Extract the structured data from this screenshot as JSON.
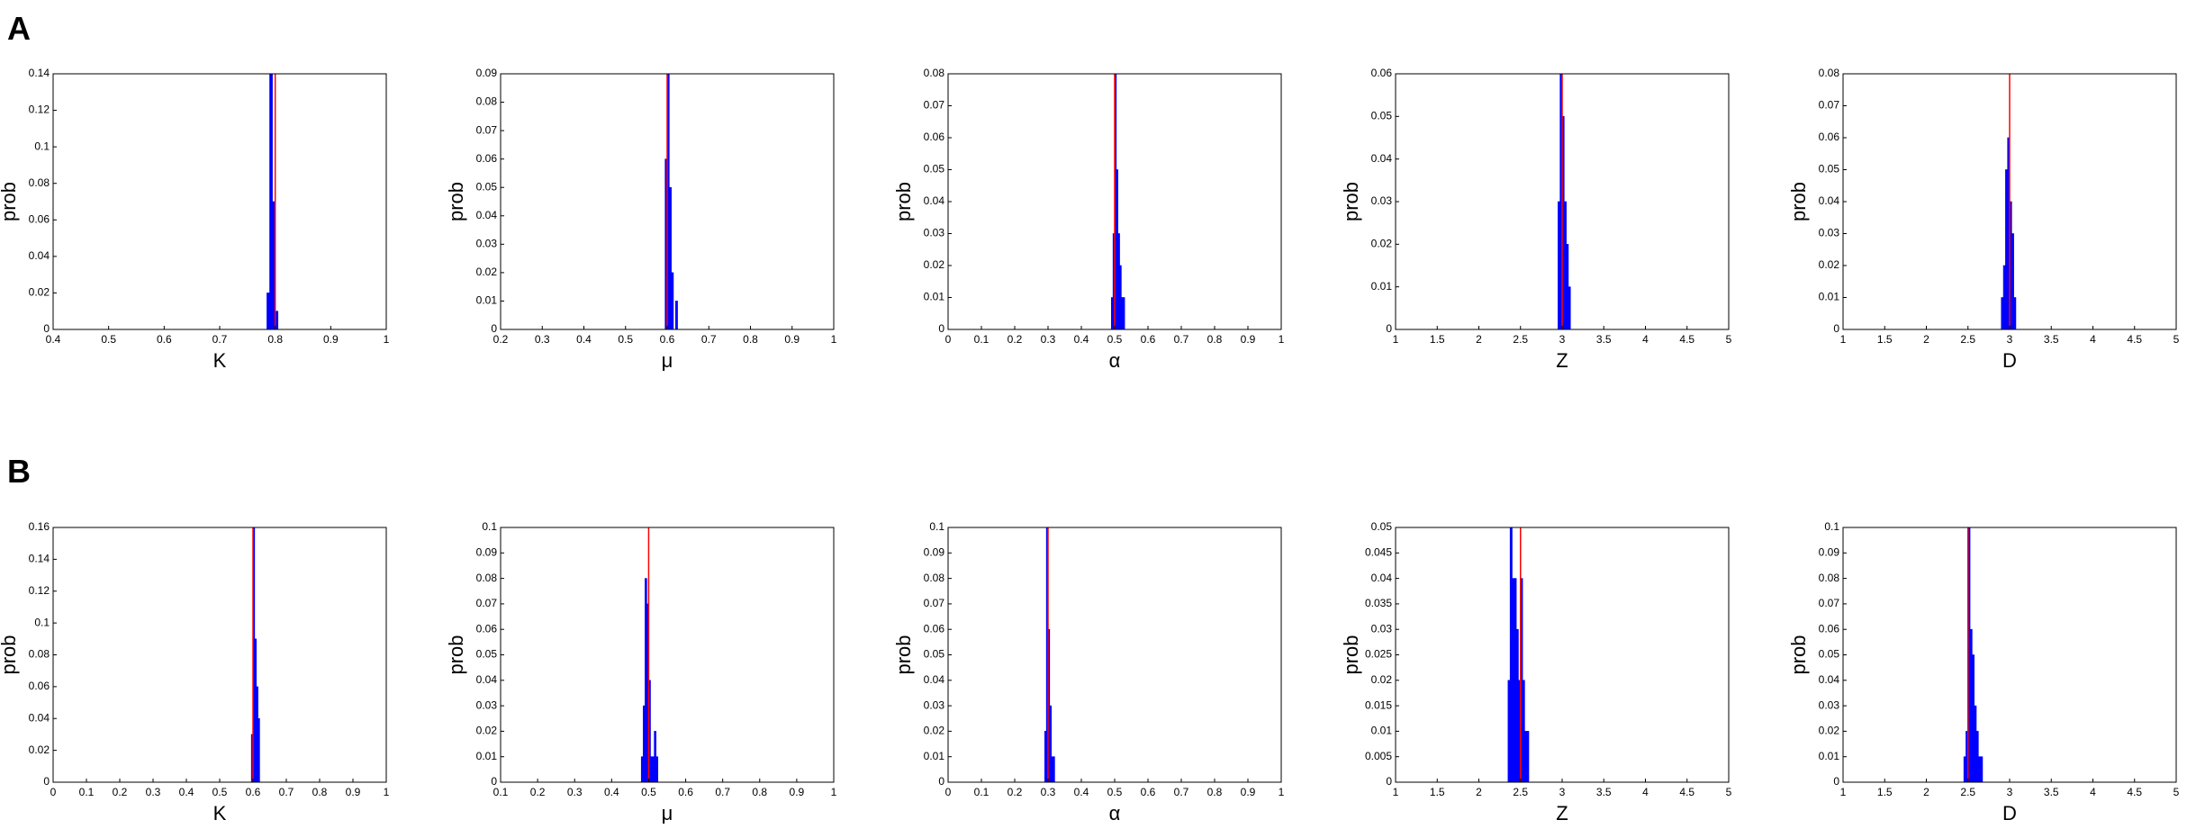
{
  "panel_labels": [
    "A",
    "B"
  ],
  "chart_data": [
    {
      "type": "histogram",
      "xlabel": "K",
      "ylabel": "prob",
      "color": "#0000ff",
      "reference_value": 0.8,
      "reference_color": "#ff0000",
      "bins": [
        0.785,
        0.79,
        0.795,
        0.8,
        0.805,
        0.81
      ],
      "values": [
        0.02,
        0.14,
        0.07,
        0.01,
        0
      ],
      "xlim": [
        0.4,
        1
      ],
      "xticks": [
        0.4,
        0.5,
        0.6,
        0.7,
        0.8,
        0.9,
        1
      ],
      "ylim": [
        0,
        0.14
      ],
      "yticks": [
        0,
        0.02,
        0.04,
        0.06,
        0.08,
        0.1,
        0.12,
        0.14
      ]
    },
    {
      "type": "histogram",
      "xlabel": "μ",
      "ylabel": "prob",
      "color": "#0000ff",
      "reference_value": 0.6,
      "reference_color": "#ff0000",
      "bins": [
        0.595,
        0.6,
        0.605,
        0.61,
        0.615,
        0.62,
        0.625
      ],
      "values": [
        0.06,
        0.09,
        0.05,
        0.02,
        0,
        0.01
      ],
      "xlim": [
        0.2,
        1
      ],
      "xticks": [
        0.2,
        0.3,
        0.4,
        0.5,
        0.6,
        0.7,
        0.8,
        0.9,
        1
      ],
      "ylim": [
        0,
        0.09
      ],
      "yticks": [
        0,
        0.01,
        0.02,
        0.03,
        0.04,
        0.05,
        0.06,
        0.07,
        0.08,
        0.09
      ]
    },
    {
      "type": "histogram",
      "xlabel": "α",
      "ylabel": "prob",
      "color": "#0000ff",
      "reference_value": 0.5,
      "reference_color": "#ff0000",
      "bins": [
        0.49,
        0.495,
        0.5,
        0.505,
        0.51,
        0.515,
        0.52,
        0.525,
        0.53
      ],
      "values": [
        0.01,
        0.03,
        0.08,
        0.05,
        0.03,
        0.02,
        0.01,
        0.01
      ],
      "xlim": [
        0,
        1
      ],
      "xticks": [
        0,
        0.1,
        0.2,
        0.3,
        0.4,
        0.5,
        0.6,
        0.7,
        0.8,
        0.9,
        1
      ],
      "ylim": [
        0,
        0.08
      ],
      "yticks": [
        0,
        0.01,
        0.02,
        0.03,
        0.04,
        0.05,
        0.06,
        0.07,
        0.08
      ]
    },
    {
      "type": "histogram",
      "xlabel": "Z",
      "ylabel": "prob",
      "color": "#0000ff",
      "reference_value": 3,
      "reference_color": "#ff0000",
      "bins": [
        2.95,
        2.975,
        3,
        3.025,
        3.05,
        3.075,
        3.1
      ],
      "values": [
        0.03,
        0.06,
        0.05,
        0.03,
        0.02,
        0.01
      ],
      "xlim": [
        1,
        5
      ],
      "xticks": [
        1,
        1.5,
        2,
        2.5,
        3,
        3.5,
        4,
        4.5,
        5
      ],
      "ylim": [
        0,
        0.06
      ],
      "yticks": [
        0,
        0.01,
        0.02,
        0.03,
        0.04,
        0.05,
        0.06
      ]
    },
    {
      "type": "histogram",
      "xlabel": "D",
      "ylabel": "prob",
      "color": "#0000ff",
      "reference_value": 3,
      "reference_color": "#ff0000",
      "bins": [
        2.9,
        2.925,
        2.95,
        2.975,
        3,
        3.025,
        3.05,
        3.075,
        3.1
      ],
      "values": [
        0.01,
        0.02,
        0.05,
        0.06,
        0.04,
        0.03,
        0.01,
        0
      ],
      "xlim": [
        1,
        5
      ],
      "xticks": [
        1,
        1.5,
        2,
        2.5,
        3,
        3.5,
        4,
        4.5,
        5
      ],
      "ylim": [
        0,
        0.08
      ],
      "yticks": [
        0,
        0.01,
        0.02,
        0.03,
        0.04,
        0.05,
        0.06,
        0.07,
        0.08
      ]
    },
    {
      "type": "histogram",
      "xlabel": "K",
      "ylabel": "prob",
      "color": "#0000ff",
      "reference_value": 0.6,
      "reference_color": "#ff0000",
      "bins": [
        0.595,
        0.6,
        0.605,
        0.61,
        0.615,
        0.62,
        0.625
      ],
      "values": [
        0.03,
        0.16,
        0.09,
        0.06,
        0.04,
        0
      ],
      "xlim": [
        0,
        1
      ],
      "xticks": [
        0,
        0.1,
        0.2,
        0.3,
        0.4,
        0.5,
        0.6,
        0.7,
        0.8,
        0.9,
        1
      ],
      "ylim": [
        0,
        0.16
      ],
      "yticks": [
        0,
        0.02,
        0.04,
        0.06,
        0.08,
        0.1,
        0.12,
        0.14,
        0.16
      ]
    },
    {
      "type": "histogram",
      "xlabel": "μ",
      "ylabel": "prob",
      "color": "#0000ff",
      "reference_value": 0.5,
      "reference_color": "#ff0000",
      "bins": [
        0.48,
        0.485,
        0.49,
        0.495,
        0.5,
        0.505,
        0.51,
        0.515,
        0.52,
        0.525
      ],
      "values": [
        0.01,
        0.03,
        0.08,
        0.07,
        0.04,
        0.01,
        0.01,
        0.02,
        0.01
      ],
      "xlim": [
        0.1,
        1
      ],
      "xticks": [
        0.1,
        0.2,
        0.3,
        0.4,
        0.5,
        0.6,
        0.7,
        0.8,
        0.9,
        1
      ],
      "ylim": [
        0,
        0.1
      ],
      "yticks": [
        0,
        0.01,
        0.02,
        0.03,
        0.04,
        0.05,
        0.06,
        0.07,
        0.08,
        0.09,
        0.1
      ]
    },
    {
      "type": "histogram",
      "xlabel": "α",
      "ylabel": "prob",
      "color": "#0000ff",
      "reference_value": 0.3,
      "reference_color": "#ff0000",
      "bins": [
        0.29,
        0.295,
        0.3,
        0.305,
        0.31,
        0.315,
        0.32
      ],
      "values": [
        0.02,
        0.1,
        0.06,
        0.03,
        0.01,
        0.01
      ],
      "xlim": [
        0,
        1
      ],
      "xticks": [
        0,
        0.1,
        0.2,
        0.3,
        0.4,
        0.5,
        0.6,
        0.7,
        0.8,
        0.9,
        1
      ],
      "ylim": [
        0,
        0.1
      ],
      "yticks": [
        0,
        0.01,
        0.02,
        0.03,
        0.04,
        0.05,
        0.06,
        0.07,
        0.08,
        0.09,
        0.1
      ]
    },
    {
      "type": "histogram",
      "xlabel": "Z",
      "ylabel": "prob",
      "color": "#0000ff",
      "reference_value": 2.5,
      "reference_color": "#ff0000",
      "bins": [
        2.35,
        2.375,
        2.4,
        2.425,
        2.45,
        2.475,
        2.5,
        2.525,
        2.55,
        2.575,
        2.6
      ],
      "values": [
        0.02,
        0.05,
        0.04,
        0.04,
        0.03,
        0.02,
        0.04,
        0.02,
        0.01,
        0.01
      ],
      "xlim": [
        1,
        5
      ],
      "xticks": [
        1,
        1.5,
        2,
        2.5,
        3,
        3.5,
        4,
        4.5,
        5
      ],
      "ylim": [
        0,
        0.05
      ],
      "yticks": [
        0,
        0.005,
        0.01,
        0.015,
        0.02,
        0.025,
        0.03,
        0.035,
        0.04,
        0.045,
        0.05
      ]
    },
    {
      "type": "histogram",
      "xlabel": "D",
      "ylabel": "prob",
      "color": "#0000ff",
      "reference_value": 2.5,
      "reference_color": "#ff0000",
      "bins": [
        2.45,
        2.475,
        2.5,
        2.525,
        2.55,
        2.575,
        2.6,
        2.625,
        2.65,
        2.675,
        2.7
      ],
      "values": [
        0.01,
        0.02,
        0.1,
        0.06,
        0.05,
        0.03,
        0.02,
        0.01,
        0.01,
        0
      ],
      "xlim": [
        1,
        5
      ],
      "xticks": [
        1,
        1.5,
        2,
        2.5,
        3,
        3.5,
        4,
        4.5,
        5
      ],
      "ylim": [
        0,
        0.1
      ],
      "yticks": [
        0,
        0.01,
        0.02,
        0.03,
        0.04,
        0.05,
        0.06,
        0.07,
        0.08,
        0.09,
        0.1
      ]
    }
  ]
}
